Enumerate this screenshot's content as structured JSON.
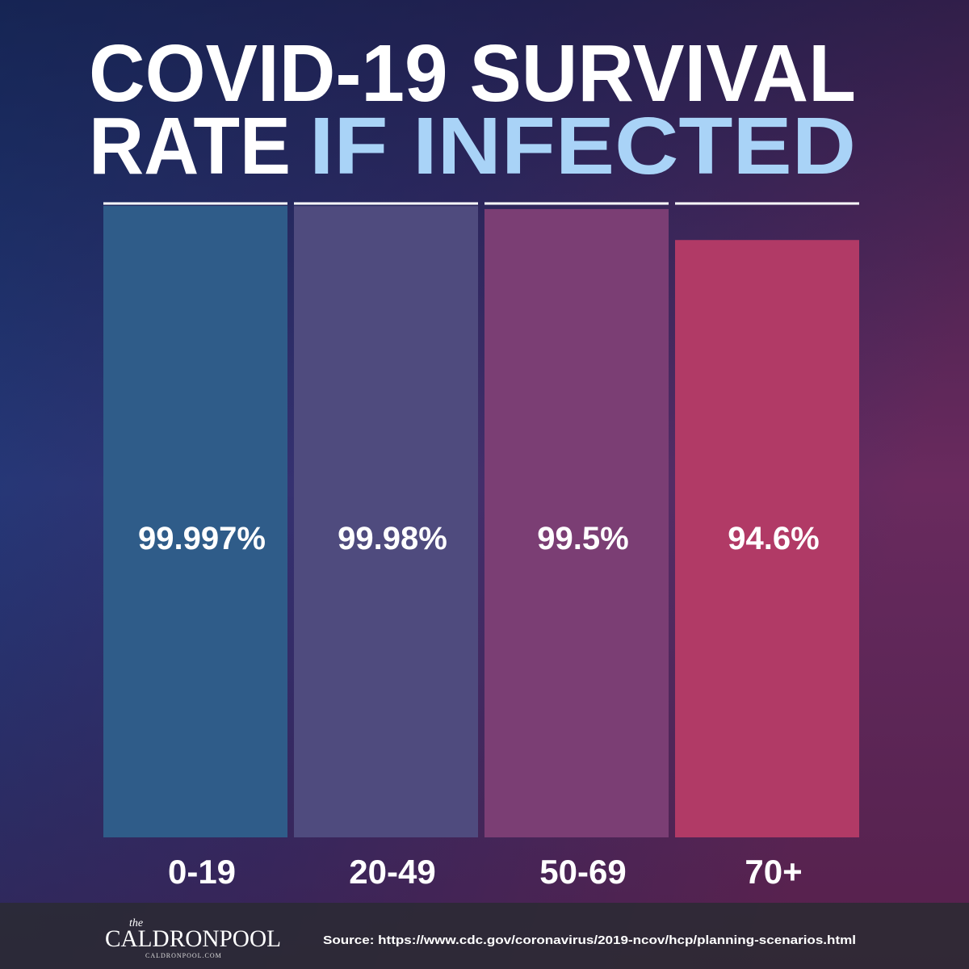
{
  "chart_data": {
    "type": "bar",
    "title": {
      "line1": "COVID-19 SURVIVAL",
      "line2": "RATE",
      "highlight": "IF INFECTED"
    },
    "categories": [
      "0-19",
      "20-49",
      "50-69",
      "70+"
    ],
    "values": [
      99.997,
      99.98,
      99.5,
      94.6
    ],
    "value_labels": [
      "99.997%",
      "99.98%",
      "99.5%",
      "94.6%"
    ],
    "colors": [
      "#2f5c89",
      "#4f4b7e",
      "#7b3e74",
      "#b13a66"
    ],
    "ylim": [
      0,
      100
    ]
  },
  "footer": {
    "logo_small": "the",
    "logo": "CALDRONPOOL",
    "logo_url": "CALDRONPOOL.COM",
    "source": "Source: https://www.cdc.gov/coronavirus/2019-ncov/hcp/planning-scenarios.html"
  }
}
